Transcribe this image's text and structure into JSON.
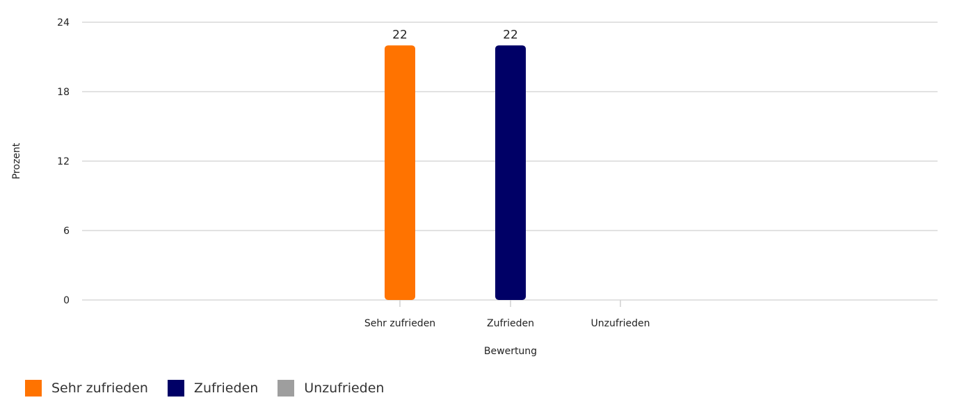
{
  "chart_data": {
    "type": "bar",
    "categories": [
      "Sehr zufrieden",
      "Zufrieden",
      "Unzufrieden"
    ],
    "series": [
      {
        "name": "Sehr zufrieden",
        "color": "#ff7300",
        "values": [
          22,
          null,
          null
        ]
      },
      {
        "name": "Zufrieden",
        "color": "#000066",
        "values": [
          null,
          22,
          null
        ]
      },
      {
        "name": "Unzufrieden",
        "color": "#9e9e9e",
        "values": [
          null,
          null,
          0
        ]
      }
    ],
    "data_labels": [
      "22",
      "22"
    ],
    "xlabel": "Bewertung",
    "ylabel": "Prozent",
    "ylim": [
      0,
      24
    ],
    "yticks": [
      "0",
      "6",
      "12",
      "18",
      "24"
    ],
    "grid": true,
    "legend_position": "bottom-left"
  }
}
